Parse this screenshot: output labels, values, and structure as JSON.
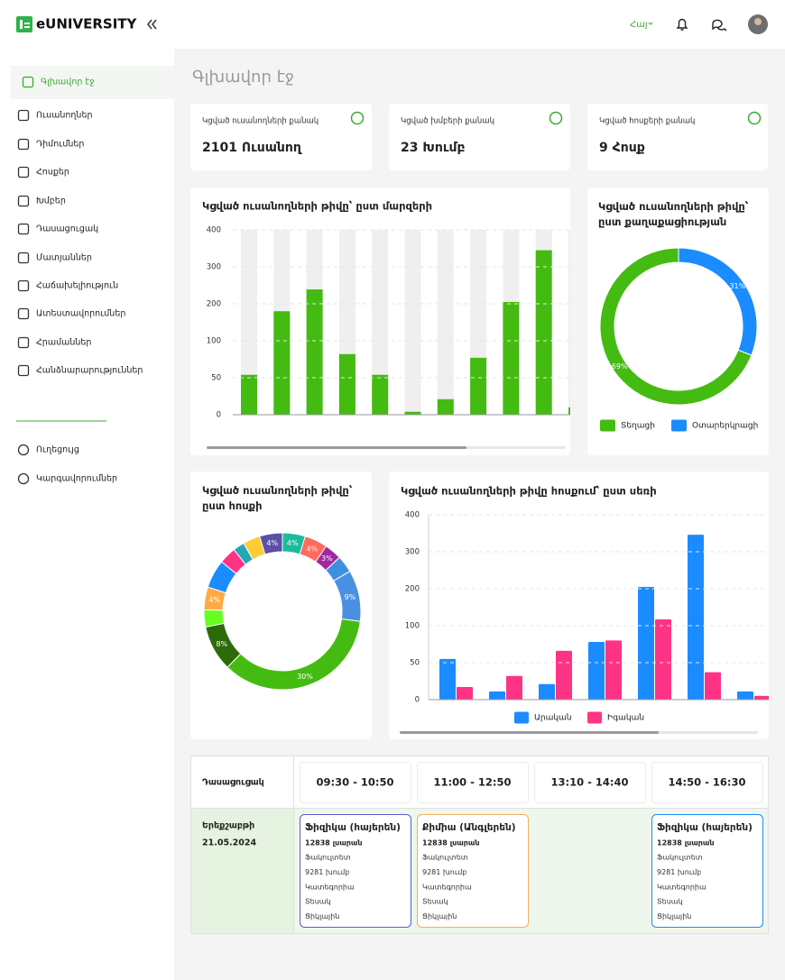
{
  "header": {
    "logo": "eUNIVERSITY",
    "language": "Հայ"
  },
  "sidebar": {
    "items": [
      "Գլխավոր էջ",
      "Ուսանողներ",
      "Դիմումներ",
      "Հոսքեր",
      "Խմբեր",
      "Դասացուցակ",
      "Մատյաններ",
      "Հաճախելիություն",
      "Ատեստավորումներ",
      "Հրամաններ",
      "Հանձնարարություններ"
    ],
    "bottom_items": [
      "Ուղեցույց",
      "Կարգավորումներ"
    ]
  },
  "page_title": "Գլխավոր էջ",
  "stats": [
    {
      "label": "Կցված ուսանողների քանակ",
      "value": "2101 Ուսանող"
    },
    {
      "label": "Կցված խմբերի քանակ",
      "value": "23 Խումբ"
    },
    {
      "label": "Կցված հոսքերի քանակ",
      "value": "9 Հոսք"
    }
  ],
  "chart_data": [
    {
      "type": "bar",
      "title": "Կցված ուսանողների թիվը՝ ըստ մարզերի",
      "categories": [
        null,
        null,
        null,
        null,
        null,
        null,
        null,
        null,
        null,
        null,
        null
      ],
      "values": [
        54,
        180,
        239,
        82,
        54,
        4,
        21,
        77,
        205,
        345,
        10
      ],
      "color": "#44bb11",
      "ylim": [
        0,
        400
      ],
      "yticks": [
        0,
        50,
        100,
        200,
        300,
        400
      ],
      "grid": true
    },
    {
      "type": "pie",
      "title": "Կցված ուսանողների թիվը՝ ըստ քաղաքացիության",
      "categories": [
        "Տեղացի",
        "Օտարերկրացի"
      ],
      "values": [
        69,
        31
      ],
      "value_labels": [
        "69%",
        "31%"
      ],
      "colors": [
        "#44bb11",
        "#1a8cff"
      ]
    },
    {
      "type": "pie",
      "title": "Կցված ուսանողների թիվը՝ ըստ հոսքի",
      "categories": [
        null,
        null,
        null,
        null,
        null,
        null,
        null,
        null,
        null,
        null,
        null,
        null,
        null,
        null
      ],
      "values": [
        4,
        4,
        3,
        3,
        9,
        30,
        8,
        3,
        4,
        5,
        3,
        2,
        3,
        4
      ],
      "value_labels": [
        "4%",
        "4%",
        "3%",
        null,
        "9%",
        "30%",
        "8%",
        null,
        "4%",
        null,
        null,
        null,
        null,
        "4%"
      ],
      "colors": [
        "#1abc9c",
        "#ff6b5b",
        "#a0299f",
        "#3d8fe0",
        "#4a90e2",
        "#44bb11",
        "#2d6a0a",
        "#66ff22",
        "#ffaa44",
        "#1a8cff",
        "#ff3385",
        "#26a6b6",
        "#ffcc33",
        "#5b4fa8"
      ]
    },
    {
      "type": "bar",
      "title": "Կցված ուսանողների թիվը հոսքում՝ ըստ սեռի",
      "categories": [
        null,
        null,
        null,
        null,
        null,
        null,
        null
      ],
      "series": [
        {
          "name": "Արական",
          "color": "#1a8cff",
          "values": [
            55,
            11,
            21,
            78,
            205,
            346,
            11
          ]
        },
        {
          "name": "Իգական",
          "color": "#ff3385",
          "values": [
            17,
            32,
            66,
            80,
            117,
            37,
            5
          ]
        }
      ],
      "ylim": [
        0,
        400
      ],
      "yticks": [
        0,
        50,
        100,
        200,
        300,
        400
      ],
      "grid": true
    }
  ],
  "schedule": {
    "header": "Դասացուցակ",
    "slots": [
      "09:30 - 10:50",
      "11:00 - 12:50",
      "13:10 - 14:40",
      "14:50 - 16:30"
    ],
    "day": "Երեքշաբթի",
    "date": "21.05.2024",
    "cards": [
      {
        "subject": "Ֆիզիկա (հայերեն)",
        "room": "12838 լսարան",
        "lines": [
          "Ֆակուլտետ",
          "9281 խումբ",
          "Կատեգորիա",
          "Տեսակ",
          "Ցիկլային"
        ],
        "color": "#5b5bd6"
      },
      {
        "subject": "Քիմիա (Անգլերեն)",
        "room": "12838 լսարան",
        "lines": [
          "Ֆակուլտետ",
          "9281 խումբ",
          "Կատեգորիա",
          "Տեսակ",
          "Ցիկլային"
        ],
        "color": "#f0b060"
      },
      null,
      {
        "subject": "Ֆիզիկա (հայերեն)",
        "room": "12838 լսարան",
        "lines": [
          "Ֆակուլտետ",
          "9281 խումբ",
          "Կատեգորիա",
          "Տեսակ",
          "Ցիկլային"
        ],
        "color": "#1a8cff"
      }
    ]
  }
}
